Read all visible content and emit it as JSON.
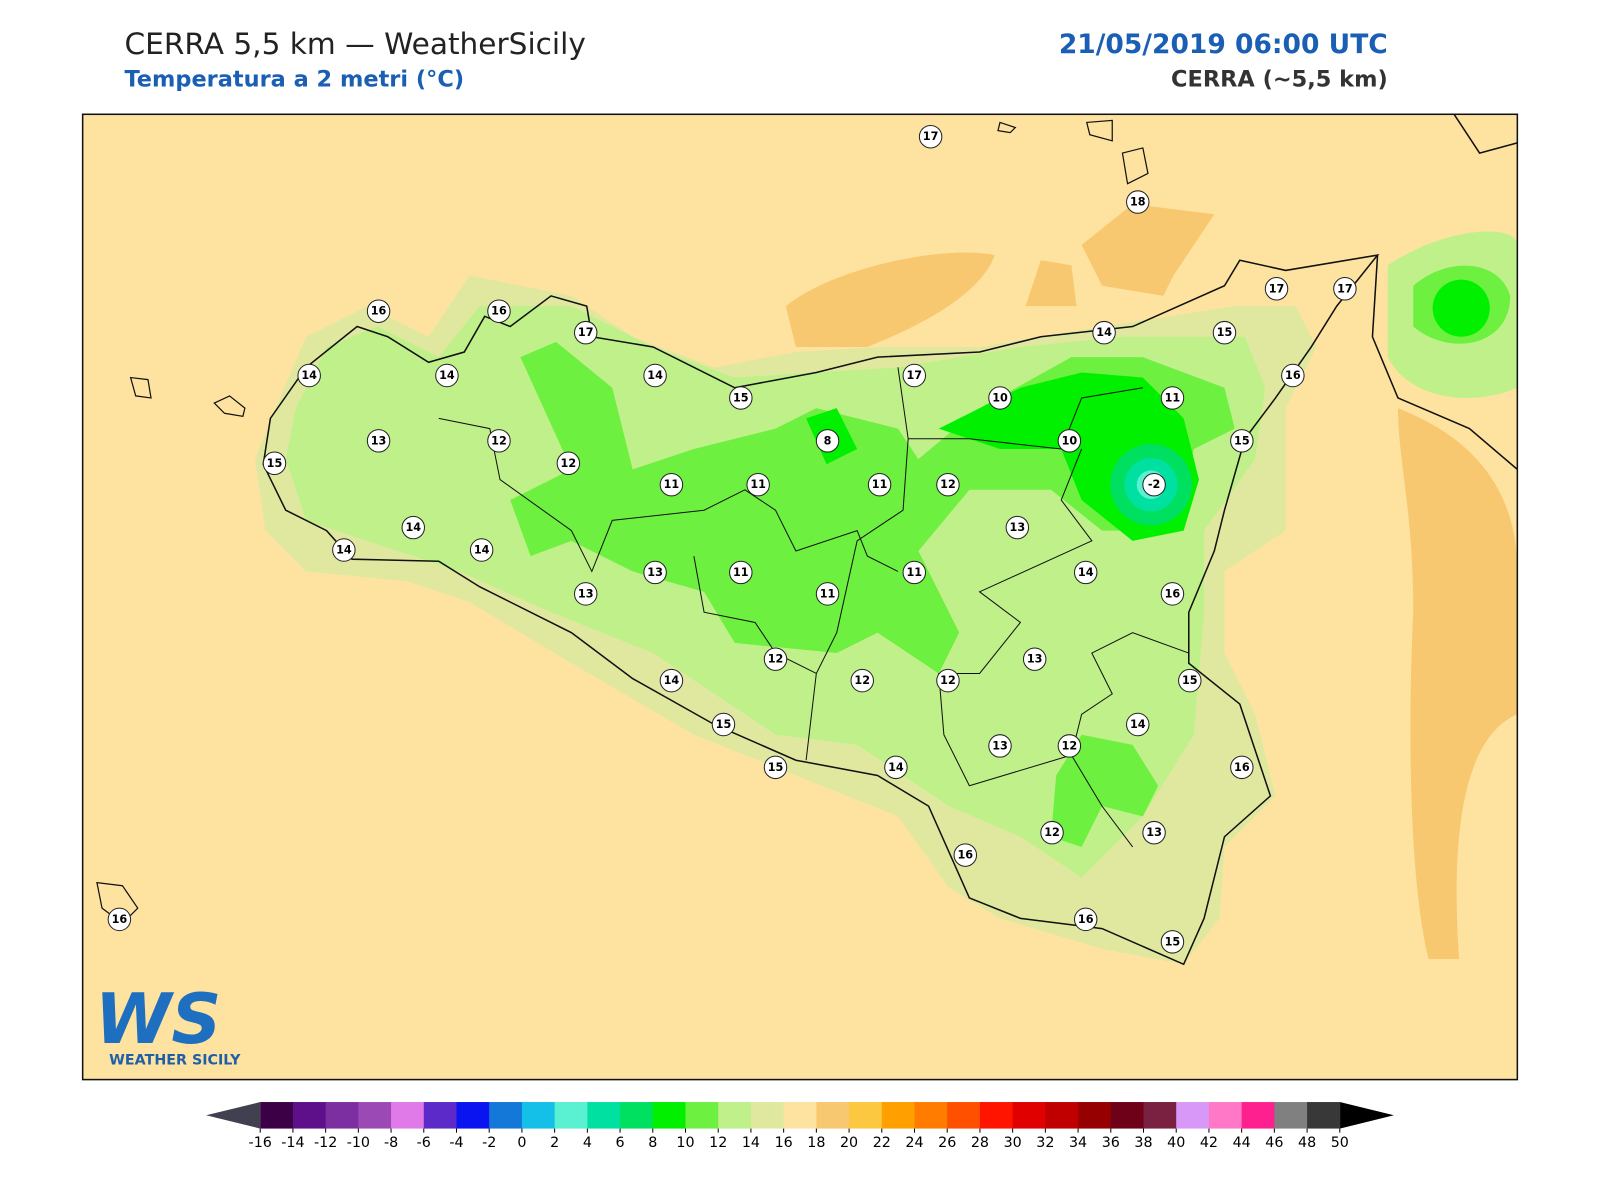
{
  "header": {
    "title": "CERRA 5,5 km — WeatherSicily",
    "subtitle": "Temperatura a 2 metri (°C)",
    "date": "21/05/2019 06:00 UTC",
    "model": "CERRA (~5,5 km)"
  },
  "map": {
    "stations": [
      17,
      18,
      16,
      16,
      17,
      17,
      17,
      14,
      14,
      14,
      14,
      15,
      15,
      17,
      10,
      11,
      16,
      13,
      12,
      8,
      10,
      15,
      15,
      12,
      11,
      11,
      11,
      12,
      -2,
      14,
      13,
      14,
      14,
      13,
      11,
      11,
      14,
      13,
      11,
      16,
      13,
      12,
      14,
      12,
      12,
      15,
      15,
      14,
      13,
      12,
      15,
      14,
      16,
      12,
      13,
      16,
      16,
      15,
      16
    ]
  },
  "colorbar": {
    "ticks": [
      -16,
      -14,
      -12,
      -10,
      -8,
      -6,
      -4,
      -2,
      0,
      2,
      4,
      6,
      8,
      10,
      12,
      14,
      16,
      18,
      20,
      22,
      24,
      26,
      28,
      30,
      32,
      34,
      36,
      38,
      40,
      42,
      44,
      46,
      48,
      50
    ],
    "colors": [
      "#3b0045",
      "#5e0f8a",
      "#7b2fa0",
      "#9b4ab5",
      "#e07ae8",
      "#5b2ac8",
      "#0a14f0",
      "#1478d8",
      "#14c0e8",
      "#5af0d2",
      "#00e0a0",
      "#00e060",
      "#00f000",
      "#6ef040",
      "#c0f08a",
      "#e0e8a0",
      "#fee3a0",
      "#f8c870",
      "#fcc840",
      "#ffa000",
      "#ff7c00",
      "#ff5000",
      "#ff1400",
      "#e00000",
      "#c00000",
      "#960000",
      "#6e0018",
      "#7a2040",
      "#d898f8",
      "#ff78c8",
      "#ff2090",
      "#808080",
      "#383838"
    ]
  },
  "logo": {
    "mark": "WS",
    "name": "WEATHER SICILY"
  }
}
